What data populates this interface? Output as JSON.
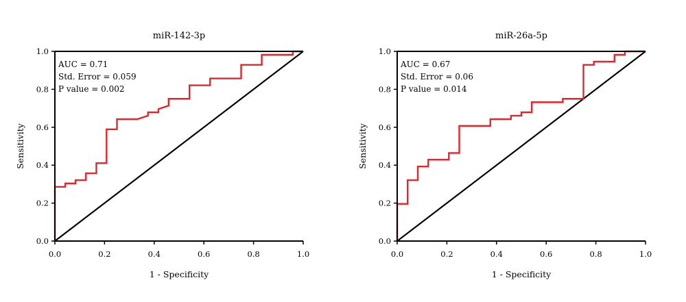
{
  "chart_data": [
    {
      "type": "line",
      "title": "miR-142-3p",
      "xlabel": "1 - Specificity",
      "ylabel": "Sensitivity",
      "xlim": [
        0,
        1
      ],
      "ylim": [
        0,
        1
      ],
      "x_ticks": [
        "0.0",
        "0.2",
        "0.4",
        "0.6",
        "0.8",
        "1.0"
      ],
      "y_ticks": [
        "0.0",
        "0.2",
        "0.4",
        "0.6",
        "0.8",
        "1.0"
      ],
      "annotations": [
        "AUC = 0.71",
        "Std. Error = 0.059",
        "P value = 0.002"
      ],
      "reference_line": [
        [
          0,
          0
        ],
        [
          1,
          1
        ]
      ],
      "series": [
        {
          "color": "#e3262b",
          "x": [
            0,
            0,
            0.042,
            0.042,
            0.083,
            0.083,
            0.125,
            0.125,
            0.167,
            0.167,
            0.208,
            0.208,
            0.25,
            0.25,
            0.333,
            0.375,
            0.375,
            0.417,
            0.417,
            0.458,
            0.458,
            0.542,
            0.542,
            0.625,
            0.625,
            0.75,
            0.75,
            0.833,
            0.833,
            0.958,
            0.958,
            1
          ],
          "y": [
            0,
            0.286,
            0.286,
            0.304,
            0.304,
            0.321,
            0.321,
            0.357,
            0.357,
            0.411,
            0.411,
            0.589,
            0.589,
            0.643,
            0.643,
            0.661,
            0.679,
            0.679,
            0.696,
            0.714,
            0.75,
            0.75,
            0.821,
            0.821,
            0.857,
            0.857,
            0.929,
            0.929,
            0.982,
            0.982,
            1,
            1
          ]
        }
      ]
    },
    {
      "type": "line",
      "title": "miR-26a-5p",
      "xlabel": "1 - Specificity",
      "ylabel": "Sensitivity",
      "xlim": [
        0,
        1
      ],
      "ylim": [
        0,
        1
      ],
      "x_ticks": [
        "0.0",
        "0.2",
        "0.4",
        "0.6",
        "0.8",
        "1.0"
      ],
      "y_ticks": [
        "0.0",
        "0.2",
        "0.4",
        "0.6",
        "0.8",
        "1.0"
      ],
      "annotations": [
        "AUC = 0.67",
        "Std. Error = 0.06",
        "P value = 0.014"
      ],
      "reference_line": [
        [
          0,
          0
        ],
        [
          1,
          1
        ]
      ],
      "series": [
        {
          "color": "#e3262b",
          "x": [
            0,
            0,
            0.042,
            0.042,
            0.083,
            0.083,
            0.125,
            0.125,
            0.208,
            0.208,
            0.25,
            0.25,
            0.375,
            0.375,
            0.458,
            0.458,
            0.5,
            0.5,
            0.542,
            0.542,
            0.667,
            0.667,
            0.75,
            0.75,
            0.792,
            0.792,
            0.875,
            0.875,
            0.917,
            0.917,
            1
          ],
          "y": [
            0,
            0.196,
            0.196,
            0.321,
            0.321,
            0.393,
            0.393,
            0.429,
            0.429,
            0.464,
            0.464,
            0.607,
            0.607,
            0.643,
            0.643,
            0.661,
            0.661,
            0.679,
            0.679,
            0.732,
            0.732,
            0.75,
            0.75,
            0.929,
            0.929,
            0.946,
            0.946,
            0.982,
            0.982,
            1,
            1
          ]
        }
      ]
    }
  ]
}
